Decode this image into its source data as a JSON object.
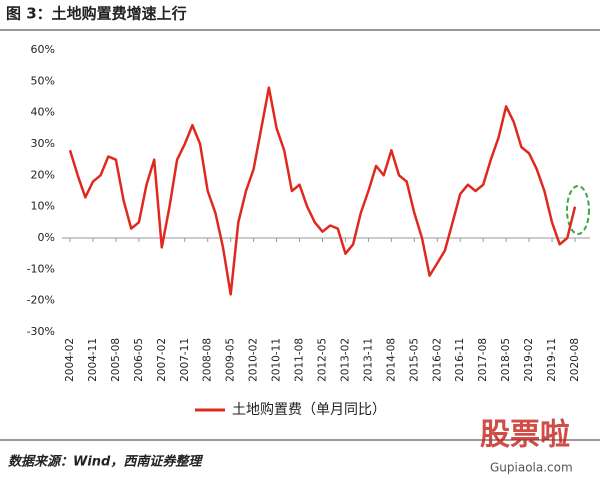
{
  "header": {
    "title": "图 3：土地购置费增速上行"
  },
  "chart_data": {
    "type": "line",
    "categories": [
      "2004-02",
      null,
      null,
      "2004-11",
      null,
      null,
      "2005-08",
      null,
      null,
      "2006-05",
      null,
      null,
      "2007-02",
      null,
      null,
      "2007-11",
      null,
      null,
      "2008-08",
      null,
      null,
      "2009-05",
      null,
      null,
      "2010-02",
      null,
      null,
      "2010-11",
      null,
      null,
      "2011-08",
      null,
      null,
      "2012-05",
      null,
      null,
      "2013-02",
      null,
      null,
      "2013-11",
      null,
      null,
      "2014-08",
      null,
      null,
      "2015-05",
      null,
      null,
      "2016-02",
      null,
      null,
      "2016-11",
      null,
      null,
      "2017-08",
      null,
      null,
      "2018-05",
      null,
      null,
      "2019-02",
      null,
      null,
      "2019-11",
      null,
      null,
      "2020-08"
    ],
    "series": [
      {
        "name": "土地购置费（单月同比）",
        "color": "#e0291e",
        "values": [
          28,
          20,
          13,
          18,
          20,
          26,
          25,
          12,
          3,
          5,
          17,
          25,
          -3,
          10,
          25,
          30,
          36,
          30,
          15,
          8,
          -3,
          -18,
          5,
          15,
          22,
          35,
          48,
          35,
          28,
          15,
          17,
          10,
          5,
          2,
          4,
          3,
          -5,
          -2,
          8,
          15,
          23,
          20,
          28,
          20,
          18,
          8,
          0,
          -12,
          -8,
          -4,
          5,
          14,
          17,
          15,
          17,
          25,
          32,
          42,
          37,
          29,
          27,
          22,
          15,
          5,
          -2,
          0,
          10
        ]
      }
    ],
    "ylim": [
      -30,
      60
    ],
    "yticks": [
      {
        "value": -30,
        "label": "-30%"
      },
      {
        "value": -20,
        "label": "-20%"
      },
      {
        "value": -10,
        "label": "-10%"
      },
      {
        "value": 0,
        "label": "0%"
      },
      {
        "value": 10,
        "label": "10%"
      },
      {
        "value": 20,
        "label": "20%"
      },
      {
        "value": 30,
        "label": "30%"
      },
      {
        "value": 40,
        "label": "40%"
      },
      {
        "value": 50,
        "label": "50%"
      },
      {
        "value": 60,
        "label": "60%"
      }
    ],
    "grid": false
  },
  "footer": {
    "source": "数据来源：Wind，西南证券整理",
    "watermark": "股票啦",
    "watermark_url": "Gupiaola.com"
  }
}
